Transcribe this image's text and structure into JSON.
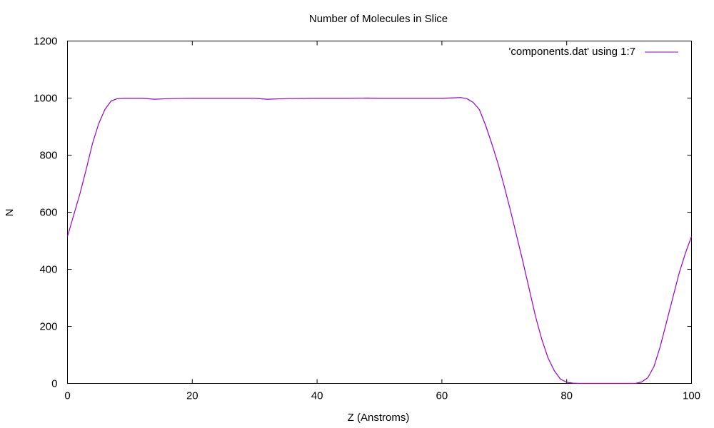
{
  "chart_data": {
    "type": "line",
    "title": "Number of Molecules in Slice",
    "xlabel": "Z (Anstroms)",
    "ylabel": "N",
    "xlim": [
      0,
      100
    ],
    "ylim": [
      0,
      1200
    ],
    "grid": false,
    "legend_position": "top-right",
    "x_ticks": [
      0,
      20,
      40,
      60,
      80,
      100
    ],
    "y_ticks": [
      0,
      200,
      400,
      600,
      800,
      1000,
      1200
    ],
    "series": [
      {
        "name": "'components.dat' using 1:7",
        "color": "#9400d3",
        "points": [
          [
            0,
            515
          ],
          [
            1,
            590
          ],
          [
            2,
            665
          ],
          [
            3,
            750
          ],
          [
            4,
            840
          ],
          [
            5,
            910
          ],
          [
            6,
            960
          ],
          [
            7,
            990
          ],
          [
            8,
            998
          ],
          [
            9,
            999
          ],
          [
            10,
            999
          ],
          [
            12,
            999
          ],
          [
            14,
            996
          ],
          [
            16,
            998
          ],
          [
            20,
            999
          ],
          [
            25,
            999
          ],
          [
            30,
            999
          ],
          [
            32,
            996
          ],
          [
            35,
            998
          ],
          [
            40,
            999
          ],
          [
            45,
            999
          ],
          [
            48,
            1000
          ],
          [
            50,
            999
          ],
          [
            55,
            999
          ],
          [
            60,
            999
          ],
          [
            62,
            1001
          ],
          [
            63,
            1002
          ],
          [
            64,
            998
          ],
          [
            65,
            985
          ],
          [
            66,
            960
          ],
          [
            67,
            905
          ],
          [
            68,
            840
          ],
          [
            69,
            770
          ],
          [
            70,
            690
          ],
          [
            71,
            605
          ],
          [
            72,
            515
          ],
          [
            73,
            425
          ],
          [
            74,
            330
          ],
          [
            75,
            235
          ],
          [
            76,
            155
          ],
          [
            77,
            90
          ],
          [
            78,
            45
          ],
          [
            79,
            15
          ],
          [
            80,
            4
          ],
          [
            81,
            1
          ],
          [
            82,
            0
          ],
          [
            85,
            0
          ],
          [
            90,
            0
          ],
          [
            91,
            0
          ],
          [
            92,
            5
          ],
          [
            93,
            20
          ],
          [
            94,
            60
          ],
          [
            95,
            130
          ],
          [
            96,
            215
          ],
          [
            97,
            300
          ],
          [
            98,
            385
          ],
          [
            99,
            455
          ],
          [
            100,
            515
          ]
        ]
      }
    ]
  }
}
